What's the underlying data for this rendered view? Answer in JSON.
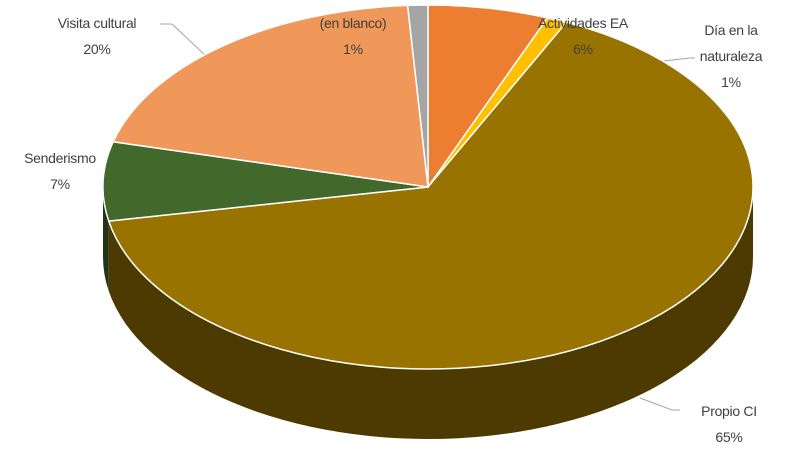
{
  "chart_data": {
    "type": "pie3d",
    "categories": [
      "Actividades EA",
      "Día en la\nnaturaleza",
      "Propio CI",
      "Senderismo",
      "Visita cultural",
      "(en blanco)"
    ],
    "values": [
      6,
      1,
      65,
      7,
      20,
      1
    ],
    "value_labels": [
      "6%",
      "1%",
      "65%",
      "7%",
      "20%",
      "1%"
    ],
    "colors": [
      "#ed7d31",
      "#ffc000",
      "#997300",
      "#43682b",
      "#f0975a",
      "#a5a5a5"
    ]
  }
}
